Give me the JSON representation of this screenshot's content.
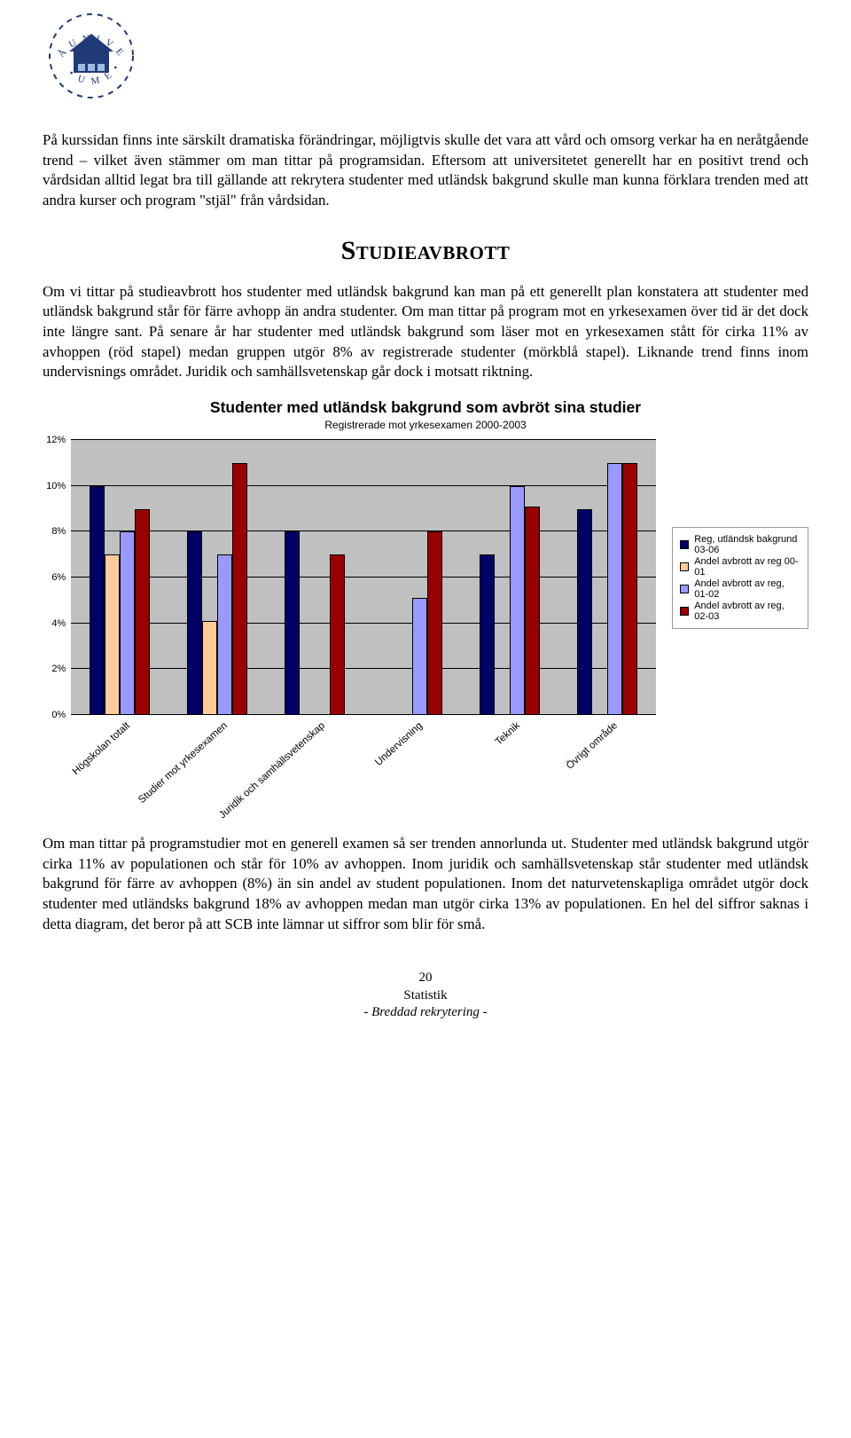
{
  "logo": {
    "ring_color": "#1f3a77",
    "house_color": "#1f3a77",
    "arch_text_top": "UNIVERSI",
    "arch_text_bottom": "• UMEÅ •"
  },
  "paragraphs": {
    "p1": "På kurssidan finns inte särskilt dramatiska förändringar, möjligtvis skulle det vara att vård och omsorg verkar ha en neråtgående trend – vilket även stämmer om man tittar på programsidan. Eftersom att universitetet generellt har en positivt trend och vårdsidan alltid legat bra till gällande att rekrytera studenter med utländsk bakgrund skulle man kunna förklara trenden med att andra kurser och program \"stjäl\" från vårdsidan.",
    "p2": "Om vi tittar på studieavbrott hos studenter med utländsk bakgrund kan man på ett generellt plan konstatera att studenter med utländsk bakgrund står för färre avhopp än andra studenter. Om man tittar på program mot en yrkesexamen över tid är det dock inte längre sant. På senare år har studenter med utländsk bakgrund som läser mot en yrkesexamen stått för cirka 11% av avhoppen (röd stapel) medan gruppen utgör 8% av registrerade studenter (mörkblå stapel). Liknande trend finns inom undervisnings området. Juridik och samhällsvetenskap går dock i motsatt riktning.",
    "p3": "Om man tittar på programstudier mot en generell examen så ser trenden annorlunda ut. Studenter med utländsk bakgrund utgör cirka 11% av populationen och står för 10% av avhoppen. Inom juridik och samhällsvetenskap står studenter med utländsk bakgrund för färre av avhoppen (8%) än sin andel av student populationen. Inom det naturvetenskapliga området utgör dock studenter med utländsks bakgrund 18% av avhoppen medan man utgör cirka 13% av populationen. En hel del siffror saknas i detta diagram, det beror på att SCB inte lämnar ut siffror som blir för små."
  },
  "section_heading": "Studieavbrott",
  "chart": {
    "title": "Studenter med utländsk bakgrund som avbröt sina studier",
    "subtitle": "Registrerade mot yrkesexamen 2000-2003",
    "type": "bar",
    "background_color": "#ffffff",
    "plot_bg": "#c0c0c0",
    "grid_color": "#000000",
    "ylim_max": 12,
    "ylim_min": 0,
    "ytick_step": 2,
    "yticks": [
      "0%",
      "2%",
      "4%",
      "6%",
      "8%",
      "10%",
      "12%"
    ],
    "categories": [
      "Högskolan totalt",
      "Studier mot yrkesexamen",
      "Juridik och samhällsvetenskap",
      "Undervisning",
      "Teknik",
      "Övrigt område"
    ],
    "series": [
      {
        "name": "Reg, utländsk bakgrund 03-06",
        "color": "#000066"
      },
      {
        "name": "Andel avbrott av reg 00-01",
        "color": "#ffcc99"
      },
      {
        "name": "Andel avbrott av reg, 01-02",
        "color": "#9999ff"
      },
      {
        "name": "Andel avbrott av reg, 02-03",
        "color": "#990000"
      }
    ],
    "values": [
      [
        10.0,
        7.0,
        8.0,
        9.0
      ],
      [
        8.0,
        4.1,
        7.0,
        11.0
      ],
      [
        8.0,
        null,
        null,
        7.0
      ],
      [
        null,
        null,
        5.1,
        8.0
      ],
      [
        7.0,
        null,
        10.0,
        9.1
      ],
      [
        9.0,
        null,
        11.0,
        11.0
      ]
    ]
  },
  "footer": {
    "page": "20",
    "line1": "Statistik",
    "line2": "- Breddad rekrytering -"
  }
}
